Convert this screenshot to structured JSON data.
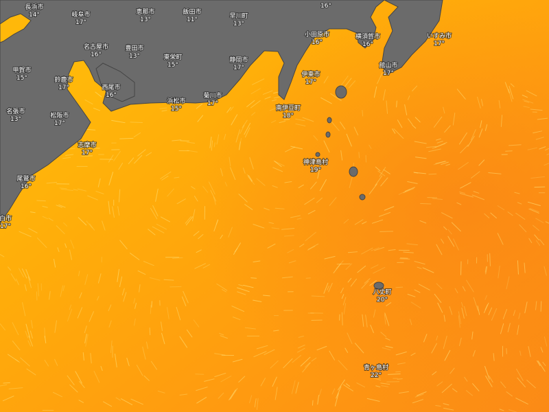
{
  "places": [
    {
      "name": "長浜市",
      "temp": "14°"
    },
    {
      "name": "岐阜市",
      "temp": "17°"
    },
    {
      "name": "恵那市",
      "temp": "13°"
    },
    {
      "name": "飯田市",
      "temp": "11°"
    },
    {
      "name": "早川町",
      "temp": "13°"
    },
    {
      "temp": "16°"
    },
    {
      "name": "名古屋市",
      "temp": "16°"
    },
    {
      "name": "豊田市",
      "temp": "13°"
    },
    {
      "name": "東栄町",
      "temp": "15°"
    },
    {
      "name": "小田原市",
      "temp": "16°"
    },
    {
      "name": "横須賀市",
      "temp": "16°"
    },
    {
      "name": "いすみ市",
      "temp": "17°"
    },
    {
      "name": "甲賀市",
      "temp": "15°"
    },
    {
      "name": "鈴鹿市",
      "temp": "17°"
    },
    {
      "name": "静岡市",
      "temp": "17°"
    },
    {
      "name": "伊東市",
      "temp": "17°"
    },
    {
      "name": "館山市",
      "temp": "17°"
    },
    {
      "name": "西尾市",
      "temp": "16°"
    },
    {
      "name": "浜松市",
      "temp": "15°"
    },
    {
      "name": "菊川市",
      "temp": "17°"
    },
    {
      "name": "南伊豆町",
      "temp": "18°"
    },
    {
      "name": "名張市",
      "temp": "13°"
    },
    {
      "name": "松阪市",
      "temp": "17°"
    },
    {
      "name": "志摩市",
      "temp": "17°"
    },
    {
      "name": "神津島村",
      "temp": "19°"
    },
    {
      "name": "尾鷲市",
      "temp": "16°"
    },
    {
      "name": "白市",
      "temp": "17°"
    },
    {
      "name": "八丈町",
      "temp": "20°"
    },
    {
      "name": "青ヶ島村",
      "temp": "22°"
    }
  ]
}
